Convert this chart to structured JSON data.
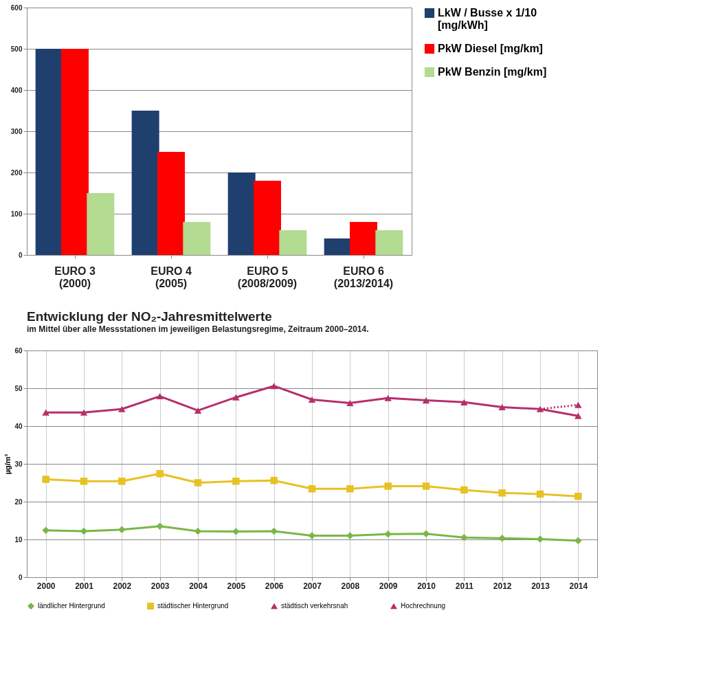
{
  "chart_data": [
    {
      "type": "bar",
      "categories": [
        "EURO 3\n(2000)",
        "EURO 4\n(2005)",
        "EURO 5\n(2008/2009)",
        "EURO 6\n(2013/2014)"
      ],
      "series": [
        {
          "name": "LkW / Busse x 1/10\n[mg/kWh]",
          "color": "#1f3f6e",
          "values": [
            500,
            350,
            200,
            40
          ]
        },
        {
          "name": "PkW Diesel [mg/km]",
          "color": "#ff0000",
          "values": [
            500,
            250,
            180,
            80
          ]
        },
        {
          "name": "PkW Benzin [mg/km]",
          "color": "#b3db92",
          "values": [
            150,
            80,
            60,
            60
          ]
        }
      ],
      "ylim": [
        0,
        600
      ],
      "yticks": [
        0,
        100,
        200,
        300,
        400,
        500,
        600
      ],
      "grid": "y",
      "legend": "right"
    },
    {
      "type": "line",
      "title": "Entwicklung der NO₂-Jahresmittelwerte",
      "subtitle": "im Mittel über alle Messstationen im jeweiligen Belastungsregime, Zeitraum 2000–2014.",
      "ylabel": "µg/m³",
      "categories": [
        "2000",
        "2001",
        "2002",
        "2003",
        "2004",
        "2005",
        "2006",
        "2007",
        "2008",
        "2009",
        "2010",
        "2011",
        "2012",
        "2013",
        "2014"
      ],
      "series": [
        {
          "name": "ländlicher Hintergrund",
          "color": "#7ab648",
          "marker": "diamond",
          "line_style": "solid",
          "values": [
            12.4,
            12.2,
            12.6,
            13.5,
            12.2,
            12.1,
            12.2,
            11.0,
            11.0,
            11.4,
            11.5,
            10.5,
            10.3,
            10.1,
            9.7
          ]
        },
        {
          "name": "städtischer Hintergrund",
          "color": "#e8c124",
          "marker": "square",
          "line_style": "solid",
          "values": [
            25.9,
            25.4,
            25.4,
            27.4,
            25.0,
            25.4,
            25.6,
            23.4,
            23.4,
            24.1,
            24.1,
            23.1,
            22.3,
            22.0,
            21.4
          ]
        },
        {
          "name": "städtisch verkehrsnah",
          "color": "#b5306b",
          "marker": "triangle",
          "line_style": "solid",
          "values": [
            43.6,
            43.6,
            44.5,
            47.9,
            44.1,
            47.6,
            50.6,
            47.0,
            46.1,
            47.4,
            46.8,
            46.3,
            45.0,
            44.5,
            42.7
          ]
        },
        {
          "name": "Hochrechnung",
          "color": "#b5306b",
          "marker": "triangle",
          "line_style": "dotted",
          "values": [
            null,
            null,
            null,
            null,
            null,
            null,
            null,
            null,
            null,
            null,
            null,
            null,
            null,
            44.5,
            45.6
          ]
        }
      ],
      "ylim": [
        0,
        60
      ],
      "yticks": [
        0,
        10,
        20,
        30,
        40,
        50,
        60
      ],
      "grid": true,
      "legend": "bottom"
    }
  ]
}
